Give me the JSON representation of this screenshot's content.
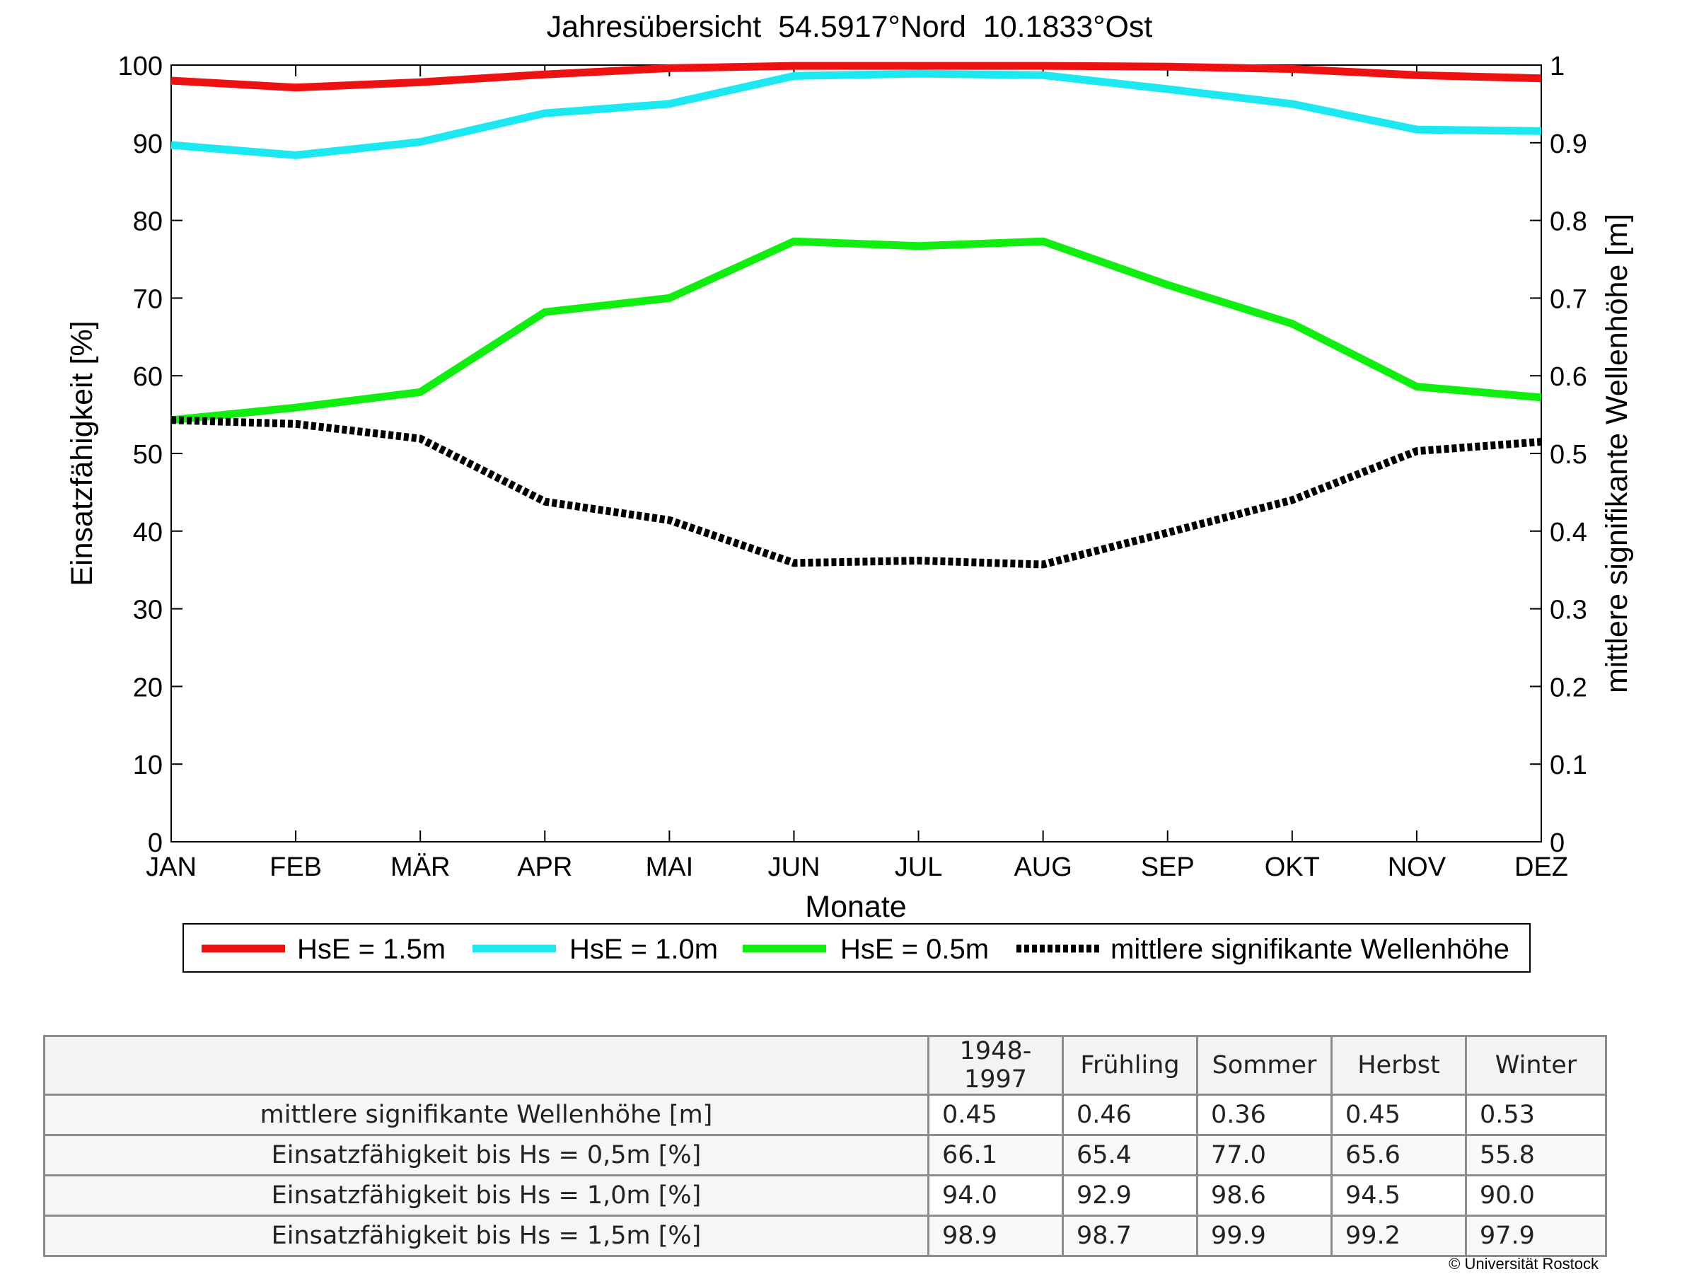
{
  "chart_data": {
    "type": "line",
    "title": "Jahresübersicht  54.5917°Nord  10.1833°Ost",
    "xlabel": "Monate",
    "ylabel_left": "Einsatzfähigkeit [%]",
    "ylabel_right": "mittlere signifikante Wellenhöhe [m]",
    "categories": [
      "JAN",
      "FEB",
      "MÄR",
      "APR",
      "MAI",
      "JUN",
      "JUL",
      "AUG",
      "SEP",
      "OKT",
      "NOV",
      "DEZ"
    ],
    "ylim_left": [
      0,
      100
    ],
    "yticks_left": [
      "0",
      "10",
      "20",
      "30",
      "40",
      "50",
      "60",
      "70",
      "80",
      "90",
      "100"
    ],
    "ylim_right": [
      0,
      1
    ],
    "yticks_right": [
      "0",
      "0.1",
      "0.2",
      "0.3",
      "0.4",
      "0.5",
      "0.6",
      "0.7",
      "0.8",
      "0.9",
      "1"
    ],
    "grid": false,
    "legend_position": "below",
    "series": [
      {
        "name": "HsE = 1.5m",
        "axis": "left",
        "color": "#ee1111",
        "style": "solid",
        "values": [
          98.0,
          97.1,
          97.8,
          98.8,
          99.6,
          99.9,
          99.9,
          99.9,
          99.8,
          99.5,
          98.7,
          98.3
        ]
      },
      {
        "name": "HsE = 1.0m",
        "axis": "left",
        "color": "#1ce8f2",
        "style": "solid",
        "values": [
          89.7,
          88.4,
          90.1,
          93.8,
          95.0,
          98.6,
          98.9,
          98.7,
          96.9,
          95.0,
          91.7,
          91.5
        ]
      },
      {
        "name": "HsE = 0.5m",
        "axis": "left",
        "color": "#10ee10",
        "style": "solid",
        "values": [
          54.3,
          55.9,
          57.9,
          68.2,
          70.0,
          77.3,
          76.7,
          77.3,
          71.7,
          66.7,
          58.6,
          57.2
        ]
      },
      {
        "name": "mittlere signifikante Wellenhöhe",
        "axis": "right",
        "color": "#000000",
        "style": "dotted",
        "values": [
          0.543,
          0.538,
          0.519,
          0.438,
          0.414,
          0.359,
          0.362,
          0.357,
          0.398,
          0.44,
          0.503,
          0.515
        ]
      }
    ]
  },
  "stats_table": {
    "headers": [
      "1948-1997",
      "Frühling",
      "Sommer",
      "Herbst",
      "Winter"
    ],
    "rows": [
      {
        "label": "mittlere signifikante Wellenhöhe [m]",
        "values": [
          "0.45",
          "0.46",
          "0.36",
          "0.45",
          "0.53"
        ]
      },
      {
        "label": "Einsatzfähigkeit bis Hs = 0,5m [%]",
        "values": [
          "66.1",
          "65.4",
          "77.0",
          "65.6",
          "55.8"
        ]
      },
      {
        "label": "Einsatzfähigkeit bis Hs = 1,0m [%]",
        "values": [
          "94.0",
          "92.9",
          "98.6",
          "94.5",
          "90.0"
        ]
      },
      {
        "label": "Einsatzfähigkeit bis Hs = 1,5m [%]",
        "values": [
          "98.9",
          "98.7",
          "99.9",
          "99.2",
          "97.9"
        ]
      }
    ]
  },
  "copyright": "© Universität Rostock"
}
